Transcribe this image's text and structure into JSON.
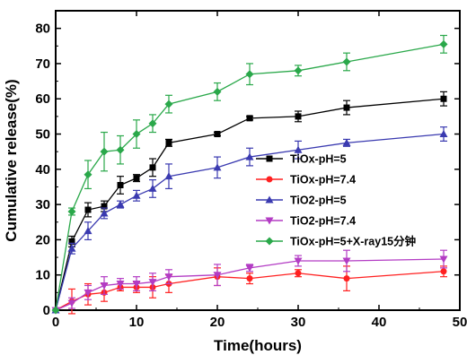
{
  "chart_data": {
    "type": "line",
    "xlabel": "Time(hours)",
    "ylabel": "Cumulative release(%)",
    "xlim": [
      0,
      50
    ],
    "ylim": [
      0,
      85
    ],
    "xticks": [
      0,
      10,
      20,
      30,
      40,
      50
    ],
    "yticks": [
      0,
      10,
      20,
      30,
      40,
      50,
      60,
      70,
      80
    ],
    "xtick_labels": [
      "0",
      "10",
      "20",
      "30",
      "40",
      "50"
    ],
    "ytick_labels": [
      "0",
      "10",
      "20",
      "30",
      "40",
      "50",
      "60",
      "70",
      "80"
    ],
    "grid": false,
    "legend_position": "right",
    "series": [
      {
        "name": "TiOx-pH=5",
        "color": "#000000",
        "marker": "square",
        "x": [
          0,
          2,
          4,
          6,
          8,
          10,
          12,
          14,
          20,
          24,
          30,
          36,
          48
        ],
        "y": [
          0,
          19.5,
          28.5,
          29.5,
          35.5,
          37.5,
          40.5,
          47.5,
          50,
          54.5,
          55,
          57.5,
          60
        ],
        "err": [
          0,
          1.5,
          2,
          1.5,
          2.5,
          1,
          2.5,
          1,
          0.5,
          0.5,
          1.5,
          2,
          2
        ]
      },
      {
        "name": "TiOx-pH=7.4",
        "color": "#ff2020",
        "marker": "circle",
        "x": [
          0,
          2,
          4,
          6,
          8,
          10,
          12,
          14,
          20,
          24,
          30,
          36,
          48
        ],
        "y": [
          0,
          2.5,
          4.5,
          5,
          6.5,
          6.5,
          6.5,
          7.5,
          9.5,
          9,
          10.5,
          9,
          11
        ],
        "err": [
          0,
          3.5,
          3,
          2.5,
          1,
          1.5,
          3,
          2.5,
          2.5,
          1.5,
          1,
          3.5,
          1.5
        ]
      },
      {
        "name": "TiO2-pH=5",
        "color": "#3a3ab0",
        "marker": "triangle-up",
        "x": [
          0,
          2,
          4,
          6,
          8,
          10,
          12,
          14,
          20,
          24,
          30,
          36,
          48
        ],
        "y": [
          0,
          17.5,
          22.5,
          27.5,
          30,
          32.5,
          34.5,
          38,
          40.5,
          43.5,
          45.5,
          47.5,
          50
        ],
        "err": [
          0,
          1.5,
          2.5,
          1.5,
          1,
          1.5,
          2.5,
          3.5,
          3,
          2.5,
          2.5,
          1,
          2
        ]
      },
      {
        "name": "TiO2-pH=7.4",
        "color": "#b33cc4",
        "marker": "triangle-down",
        "x": [
          0,
          2,
          4,
          6,
          8,
          10,
          12,
          14,
          20,
          24,
          30,
          36,
          48
        ],
        "y": [
          0,
          2,
          5,
          7,
          7.5,
          7.5,
          8,
          9.5,
          10,
          12,
          14,
          14,
          14.5
        ],
        "err": [
          0,
          1.5,
          2,
          2.5,
          1.5,
          2,
          2.5,
          2,
          3,
          1,
          1.5,
          3,
          2.5
        ]
      },
      {
        "name": "TiOx-pH=5+X-ray15分钟",
        "color": "#2aa84a",
        "marker": "diamond",
        "x": [
          0,
          2,
          4,
          6,
          8,
          10,
          12,
          14,
          20,
          24,
          30,
          36,
          48
        ],
        "y": [
          0,
          28,
          38.5,
          45,
          45.5,
          50,
          53,
          58.5,
          62,
          67,
          68,
          70.5,
          75.5
        ],
        "err": [
          0,
          1,
          4,
          5.5,
          4,
          4,
          2.5,
          2.5,
          2.5,
          3,
          1.5,
          2.5,
          2.5
        ]
      }
    ]
  }
}
